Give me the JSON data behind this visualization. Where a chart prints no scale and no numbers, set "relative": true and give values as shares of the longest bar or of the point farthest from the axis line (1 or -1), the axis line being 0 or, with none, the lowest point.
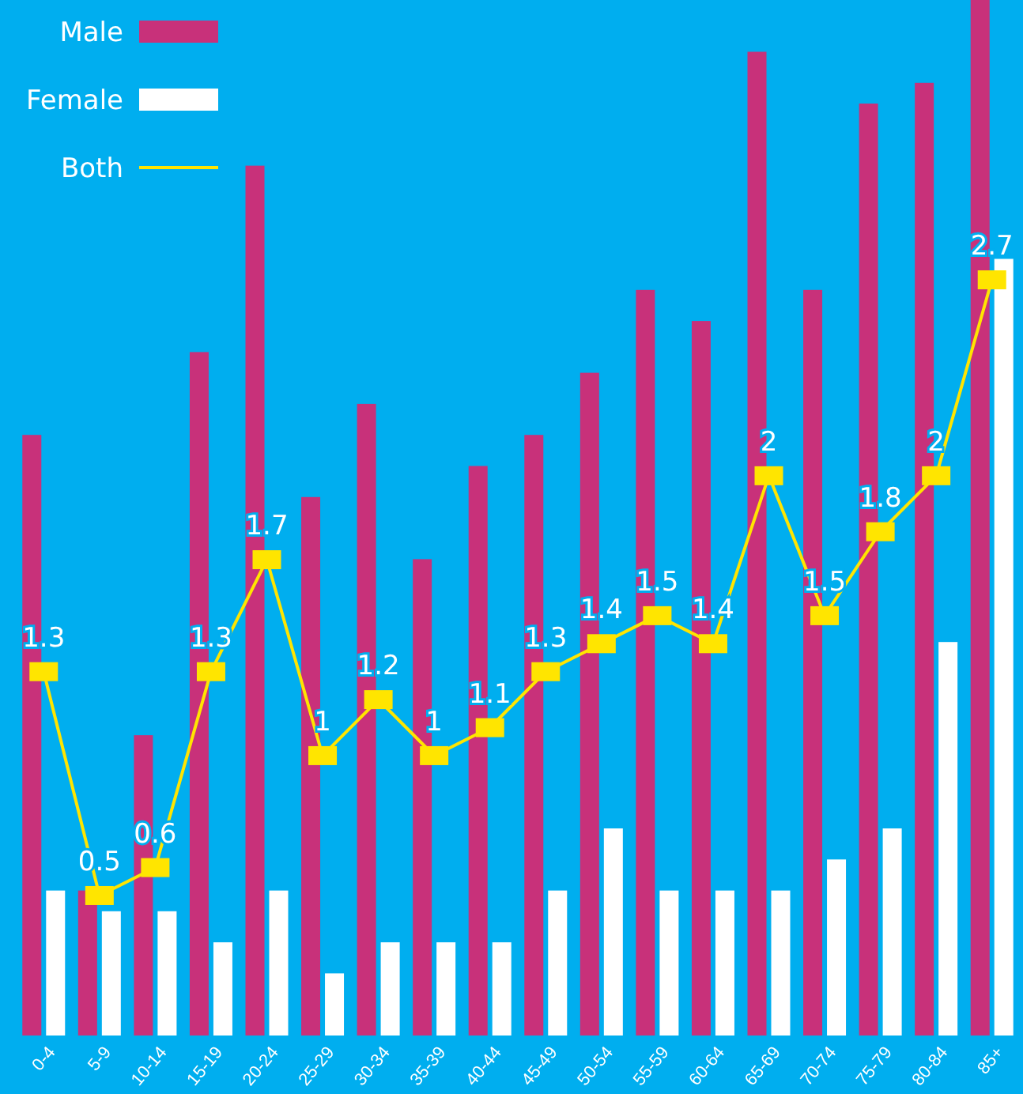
{
  "chart_data": [
    {
      "type": "bar",
      "relative": true,
      "legend": "top left",
      "categories": [
        "0-4",
        "5-9",
        "10-14",
        "15-19",
        "20-24",
        "25-29",
        "30-34",
        "35-39",
        "40-44",
        "45-49",
        "50-54",
        "55-59",
        "60-64",
        "65-69",
        "70-74",
        "75-79",
        "80-84",
        "85+"
      ],
      "series": [
        {
          "name": "Male",
          "color": "#c8317a",
          "values": [
            0.58,
            0.14,
            0.29,
            0.66,
            0.84,
            0.52,
            0.61,
            0.46,
            0.55,
            0.58,
            0.64,
            0.72,
            0.69,
            0.95,
            0.72,
            0.9,
            0.92,
            1
          ]
        },
        {
          "name": "Female",
          "color": "#ffffff",
          "values": [
            0.14,
            0.12,
            0.12,
            0.09,
            0.14,
            0.06,
            0.09,
            0.09,
            0.09,
            0.14,
            0.2,
            0.14,
            0.14,
            0.14,
            0.17,
            0.2,
            0.38,
            0.75
          ]
        }
      ]
    },
    {
      "type": "line",
      "legend": "top left",
      "tick_labels": false,
      "marker": "square",
      "series": [
        {
          "name": "Both",
          "color": "#ffe500",
          "values": [
            1.3,
            0.5,
            0.6,
            1.3,
            1.7,
            1,
            1.2,
            1,
            1.1,
            1.3,
            1.4,
            1.5,
            1.4,
            2,
            1.5,
            1.8,
            2,
            2.7
          ],
          "value_labels": [
            "1.3",
            "0.5",
            "0.6",
            "1.3",
            "1.7",
            "1",
            "1.2",
            "1",
            "1.1",
            "1.3",
            "1.4",
            "1.5",
            "1.4",
            "2",
            "1.5",
            "1.8",
            "2",
            "2.7"
          ]
        }
      ]
    }
  ]
}
